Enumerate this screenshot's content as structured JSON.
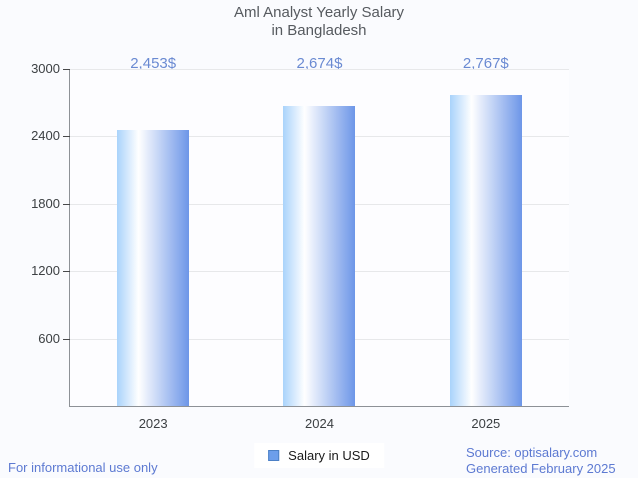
{
  "header": {
    "title_line1": "Aml Analyst Yearly Salary",
    "title_line2": "in Bangladesh"
  },
  "legend": {
    "label": "Salary in USD"
  },
  "footer": {
    "disclaimer": "For informational use only",
    "source": "Source: optisalary.com",
    "generated": "Generated February 2025"
  },
  "colors": {
    "background": "#fafbfe",
    "title_text": "#565a5f",
    "value_label_text": "#6a8ad2",
    "axis_line": "#8d9196",
    "gridline": "#e7e8ea",
    "tick_text": "#3c4043",
    "footer_text": "#5d7ad2",
    "legend_marker_fill": "#6d9eeb",
    "legend_marker_border": "#4c80c6",
    "bar_gradient": [
      "#a9d3fb",
      "#ffffff",
      "#6d96e8"
    ]
  },
  "chart_data": {
    "type": "bar",
    "title": "Aml Analyst Yearly Salary in Bangladesh",
    "categories": [
      "2023",
      "2024",
      "2025"
    ],
    "series": [
      {
        "name": "Salary in USD",
        "values": [
          2453,
          2674,
          2767
        ]
      }
    ],
    "value_labels": [
      "2,453$",
      "2,674$",
      "2,767$"
    ],
    "xlabel": "",
    "ylabel": "",
    "ylim": [
      0,
      3000
    ],
    "yticks": [
      600,
      1200,
      1800,
      2400,
      3000
    ],
    "grid": "horizontal",
    "legend_position": "bottom"
  }
}
